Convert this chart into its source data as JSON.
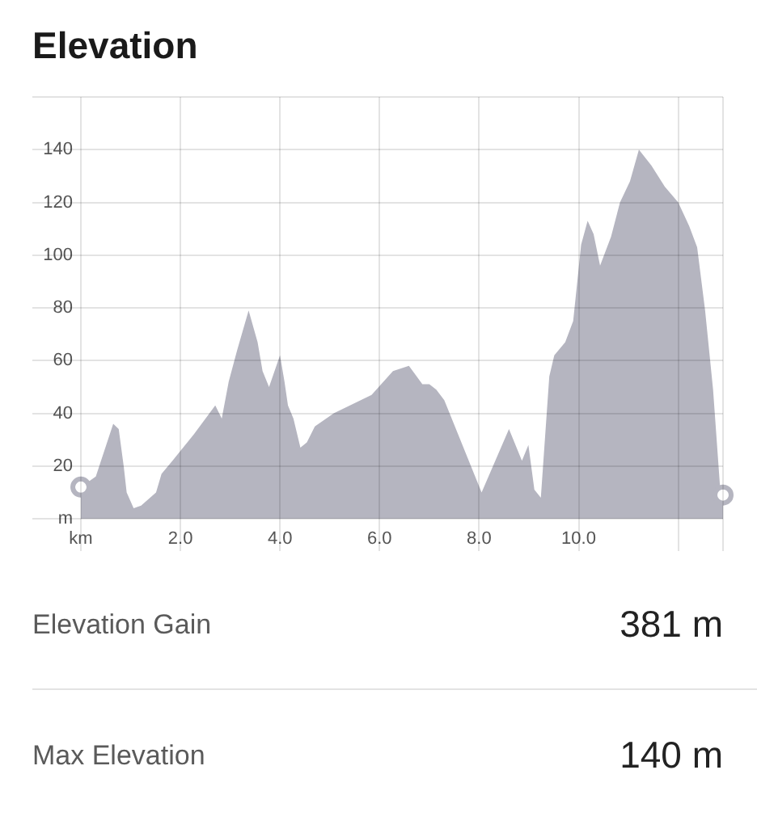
{
  "chart_data": {
    "type": "area",
    "title": "Elevation",
    "x": [
      0,
      0.3,
      0.65,
      0.76,
      0.86,
      0.92,
      1.06,
      1.21,
      1.51,
      1.62,
      1.84,
      2.27,
      2.7,
      2.83,
      2.97,
      3.14,
      3.37,
      3.55,
      3.65,
      3.78,
      4.0,
      4.09,
      4.16,
      4.27,
      4.41,
      4.54,
      4.7,
      5.08,
      5.84,
      6.27,
      6.59,
      6.86,
      7.0,
      7.14,
      7.3,
      8.05,
      8.6,
      8.86,
      8.99,
      9.11,
      9.24,
      9.41,
      9.51,
      9.73,
      9.89,
      10.05,
      10.18,
      10.3,
      10.43,
      10.65,
      10.83,
      11.03,
      11.21,
      11.46,
      11.73,
      12.0,
      12.22,
      12.38,
      12.54,
      12.7,
      12.84,
      12.9
    ],
    "series": [
      {
        "color": "#b5b5c0",
        "values": [
          12,
          16,
          36,
          34,
          20,
          10,
          4,
          5,
          10,
          17,
          22,
          32,
          43,
          38,
          52,
          64,
          79,
          67,
          56,
          50,
          62,
          52,
          43,
          38,
          27,
          29,
          35,
          40,
          47,
          56,
          58,
          51,
          51,
          49,
          45,
          10,
          34,
          22,
          28,
          11,
          8,
          54,
          62,
          67,
          75,
          104,
          113,
          108,
          96,
          107,
          120,
          128,
          140,
          134,
          126,
          120,
          111,
          103,
          79,
          49,
          12,
          9
        ]
      },
      {
        "type": "scatter",
        "color": "#b5b5c0",
        "marker": "circle",
        "x": [
          0,
          12.9
        ],
        "values": [
          12,
          9
        ]
      }
    ],
    "xlim": [
      0,
      12.9
    ],
    "ylim": [
      0,
      160
    ],
    "xticks": [
      {
        "value": 0,
        "label": "km"
      },
      {
        "value": 2,
        "label": "2.0"
      },
      {
        "value": 4,
        "label": "4.0"
      },
      {
        "value": 6,
        "label": "6.0"
      },
      {
        "value": 8,
        "label": "8.0"
      },
      {
        "value": 10,
        "label": "10.0"
      },
      {
        "value": 12,
        "label": null
      },
      {
        "value": 12.9,
        "label": null
      }
    ],
    "yticks": [
      {
        "value": 0,
        "label": "m"
      },
      20,
      40,
      60,
      80,
      100,
      120,
      140,
      {
        "value": 160,
        "label": null
      }
    ],
    "grid": true,
    "annotations": [
      "Elevation Gain",
      "381 m",
      "Max Elevation",
      "140 m"
    ]
  }
}
